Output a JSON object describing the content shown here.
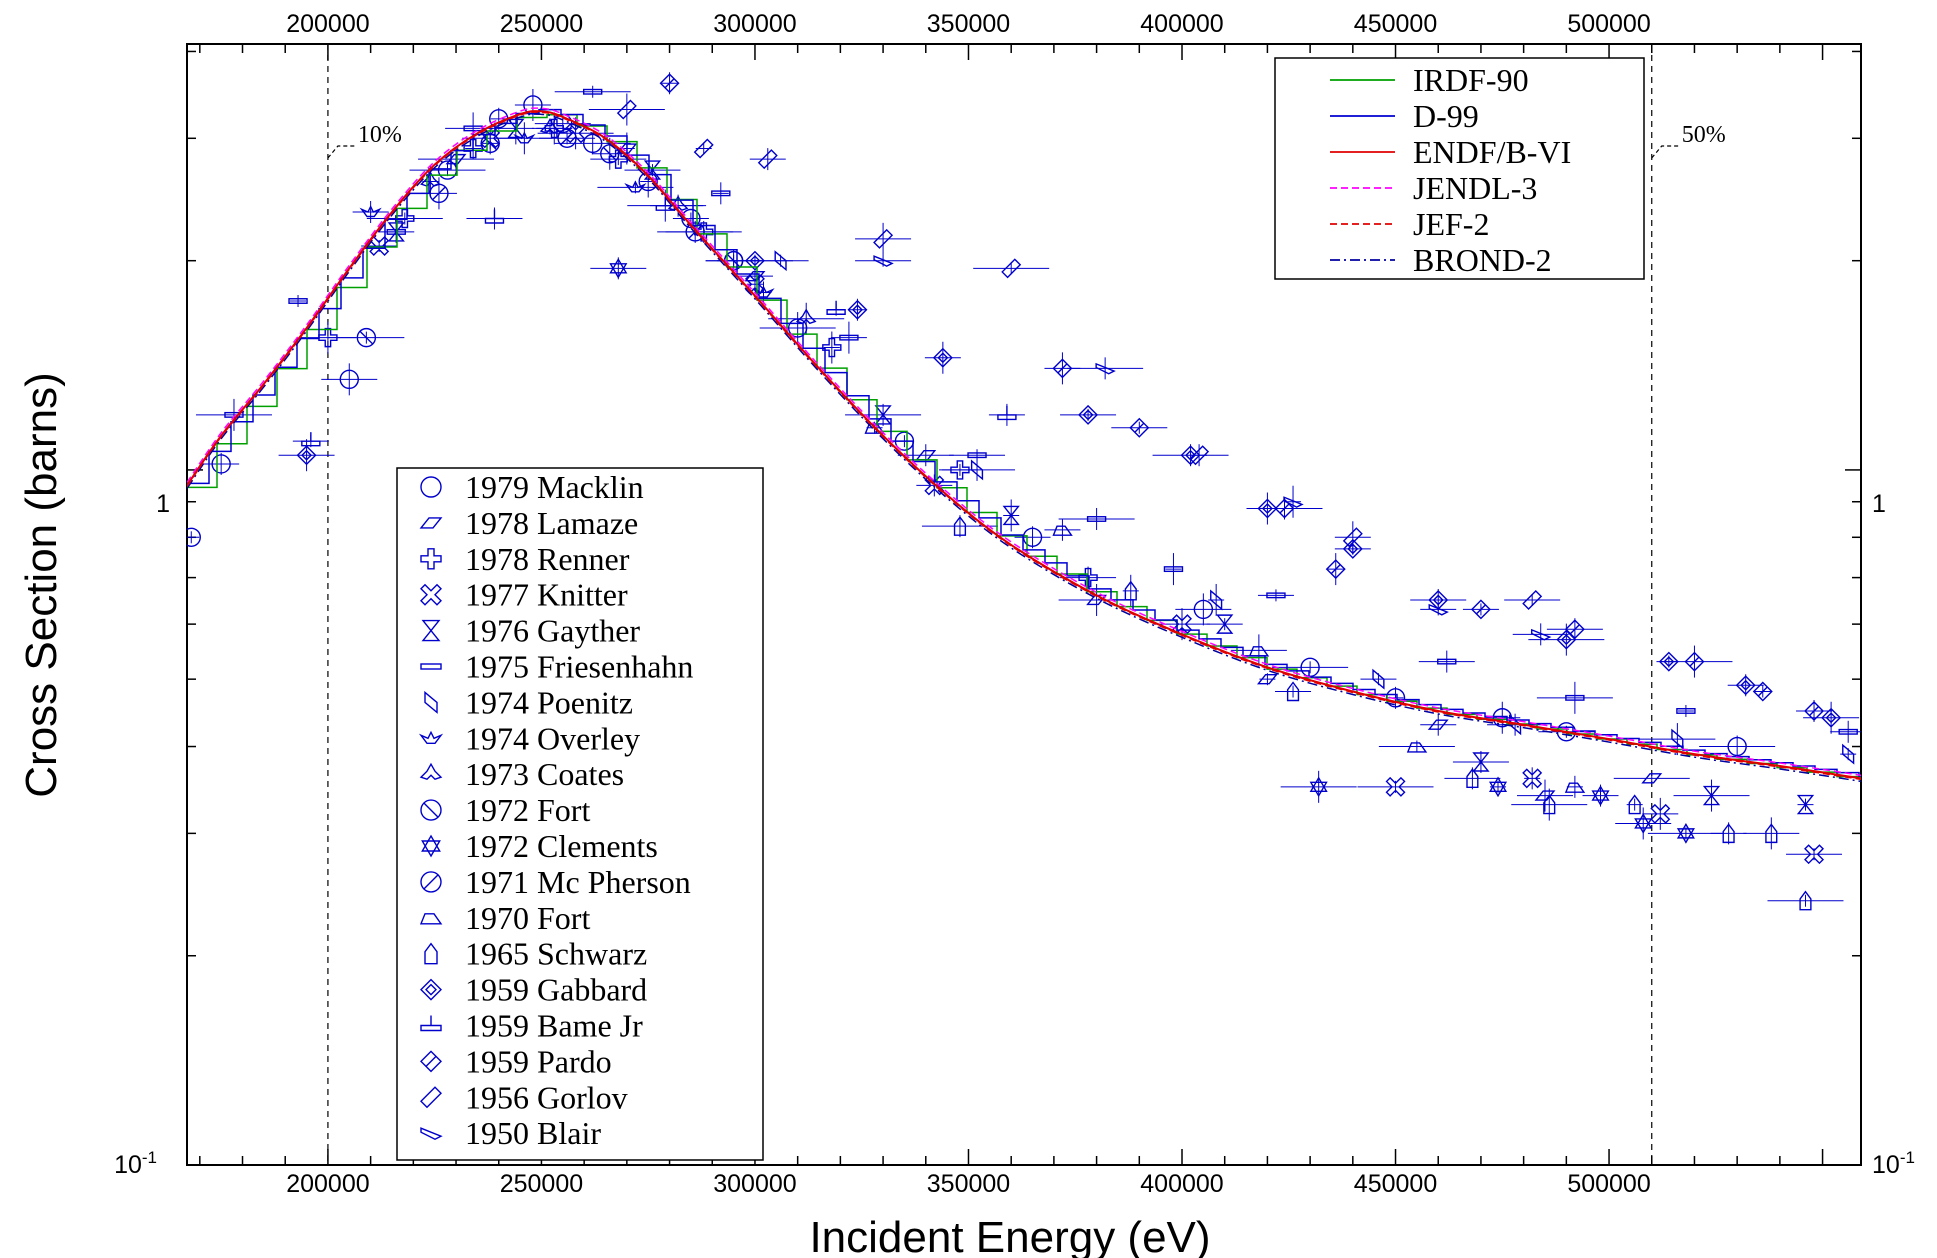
{
  "chart_data": {
    "type": "scatter",
    "xlabel": "Incident Energy (eV)",
    "ylabel": "Cross Section (barns)",
    "xlim": [
      167000,
      559000
    ],
    "ylim": [
      0.1,
      4.1
    ],
    "y_scale": "log",
    "x_ticks": [
      200000,
      250000,
      300000,
      350000,
      400000,
      450000,
      500000
    ],
    "x_tick_labels": [
      "200000",
      "250000",
      "300000",
      "350000",
      "400000",
      "450000",
      "500000"
    ],
    "y_tick_labels": {
      "one": "1",
      "tenth_base": "10",
      "tenth_exp": "-1"
    },
    "grid": false,
    "markers": [
      {
        "x": 200000,
        "label": "10%"
      },
      {
        "x": 510000,
        "label": "50%"
      }
    ],
    "evaluations_legend_position": "top-right",
    "experiments_legend_position": "lower-left",
    "evaluations": [
      {
        "name": "IRDF-90",
        "color": "#00a000",
        "dash": "solid"
      },
      {
        "name": "D-99",
        "color": "#0000d0",
        "dash": "solid"
      },
      {
        "name": "ENDF/B-VI",
        "color": "#e00000",
        "dash": "solid"
      },
      {
        "name": "JENDL-3",
        "color": "#ff00ff",
        "dash": "dashed"
      },
      {
        "name": "JEF-2",
        "color": "#e00000",
        "dash": "dashed"
      },
      {
        "name": "BROND-2",
        "color": "#0000a0",
        "dash": "dashdot"
      }
    ],
    "curve": {
      "x": [
        167000,
        175000,
        185000,
        195000,
        205000,
        215000,
        225000,
        235000,
        245000,
        250000,
        255000,
        265000,
        275000,
        285000,
        300000,
        315000,
        330000,
        345000,
        360000,
        380000,
        400000,
        420000,
        440000,
        460000,
        480000,
        500000,
        520000,
        540000,
        559000
      ],
      "y": [
        0.95,
        1.12,
        1.33,
        1.6,
        1.95,
        2.35,
        2.75,
        3.05,
        3.25,
        3.28,
        3.22,
        3.0,
        2.65,
        2.25,
        1.78,
        1.4,
        1.12,
        0.92,
        0.78,
        0.66,
        0.58,
        0.52,
        0.48,
        0.45,
        0.43,
        0.41,
        0.39,
        0.375,
        0.36
      ]
    },
    "experiments": [
      {
        "name": "1979 Macklin",
        "symbol": "circle",
        "x": [
          168000,
          175000,
          205000,
          228000,
          240000,
          248000,
          255000,
          262000,
          275000,
          285000,
          295000,
          310000,
          335000,
          365000,
          405000,
          430000,
          450000,
          475000,
          490000,
          530000
        ],
        "y": [
          0.8,
          1.02,
          1.35,
          2.7,
          3.2,
          3.35,
          3.15,
          2.95,
          2.6,
          2.3,
          2.0,
          1.6,
          1.1,
          0.8,
          0.63,
          0.52,
          0.47,
          0.44,
          0.42,
          0.4
        ]
      },
      {
        "name": "1978 Lamaze",
        "symbol": "parallelogram",
        "x": [
          230000,
          270000,
          300000,
          340000,
          380000,
          420000,
          460000,
          485000,
          510000
        ],
        "y": [
          2.8,
          2.9,
          1.9,
          1.05,
          0.65,
          0.5,
          0.43,
          0.34,
          0.36
        ]
      },
      {
        "name": "1978 Renner",
        "symbol": "plus",
        "x": [
          200000,
          218000,
          234000,
          253000,
          268000,
          288000,
          318000,
          348000,
          378000
        ],
        "y": [
          1.55,
          2.3,
          2.9,
          3.1,
          2.8,
          2.2,
          1.5,
          1.0,
          0.7
        ]
      },
      {
        "name": "1977 Knitter",
        "symbol": "x-cross",
        "x": [
          212000,
          238000,
          258000,
          300000,
          342000,
          400000,
          450000,
          482000,
          512000,
          548000
        ],
        "y": [
          2.1,
          3.0,
          3.05,
          1.85,
          0.95,
          0.6,
          0.35,
          0.36,
          0.32,
          0.28
        ]
      },
      {
        "name": "1976 Gayther",
        "symbol": "bowtie",
        "x": [
          216000,
          244000,
          276000,
          330000,
          360000,
          410000,
          470000,
          524000,
          546000
        ],
        "y": [
          2.2,
          3.1,
          2.7,
          1.2,
          0.86,
          0.6,
          0.38,
          0.34,
          0.33
        ]
      },
      {
        "name": "1975 Friesenhahn",
        "symbol": "bar",
        "x": [
          178000,
          193000,
          216000,
          234000,
          262000,
          292000,
          322000,
          352000,
          380000,
          398000,
          422000,
          462000,
          492000,
          518000,
          556000
        ],
        "y": [
          1.2,
          1.75,
          2.2,
          3.1,
          3.5,
          2.5,
          1.55,
          1.05,
          0.85,
          0.72,
          0.66,
          0.53,
          0.47,
          0.45,
          0.42
        ]
      },
      {
        "name": "1974 Poenitz",
        "symbol": "flag",
        "x": [
          306000,
          352000,
          408000,
          446000,
          478000,
          516000,
          556000
        ],
        "y": [
          2.0,
          1.0,
          0.65,
          0.5,
          0.43,
          0.41,
          0.39
        ]
      },
      {
        "name": "1974 Overley",
        "symbol": "boat",
        "x": [
          210000,
          246000,
          272000,
          302000
        ],
        "y": [
          2.35,
          3.0,
          2.55,
          1.8
        ]
      },
      {
        "name": "1973 Coates",
        "symbol": "club",
        "x": [
          224000,
          252000,
          282000,
          312000
        ],
        "y": [
          2.6,
          3.1,
          2.4,
          1.65
        ]
      },
      {
        "name": "1972 Fort",
        "symbol": "circle-slash",
        "x": [
          209000,
          238000,
          266000,
          295000
        ],
        "y": [
          1.55,
          2.95,
          2.85,
          2.0
        ]
      },
      {
        "name": "1972 Clements",
        "symbol": "star6",
        "x": [
          268000,
          432000,
          474000,
          498000,
          508000,
          518000
        ],
        "y": [
          1.95,
          0.35,
          0.35,
          0.34,
          0.31,
          0.3
        ]
      },
      {
        "name": "1971 Mc Pherson",
        "symbol": "circle-slash-fwd",
        "x": [
          226000,
          256000,
          286000
        ],
        "y": [
          2.5,
          3.0,
          2.2
        ]
      },
      {
        "name": "1970 Fort",
        "symbol": "pentagon-flag",
        "x": [
          328000,
          372000,
          418000,
          455000,
          492000
        ],
        "y": [
          1.15,
          0.82,
          0.55,
          0.4,
          0.35
        ]
      },
      {
        "name": "1965 Schwarz",
        "symbol": "house",
        "x": [
          348000,
          388000,
          426000,
          468000,
          486000,
          506000,
          528000,
          538000,
          546000
        ],
        "y": [
          0.83,
          0.67,
          0.48,
          0.36,
          0.33,
          0.33,
          0.3,
          0.3,
          0.24
        ]
      },
      {
        "name": "1959 Gabbard",
        "symbol": "diamond",
        "x": [
          195000,
          300000,
          324000,
          344000,
          378000,
          402000,
          420000,
          440000,
          460000,
          490000,
          514000,
          532000,
          552000
        ],
        "y": [
          1.05,
          2.0,
          1.7,
          1.45,
          1.2,
          1.05,
          0.88,
          0.77,
          0.65,
          0.57,
          0.53,
          0.49,
          0.44
        ]
      },
      {
        "name": "1959 Bame Jr",
        "symbol": "tee",
        "x": [
          196000,
          239000,
          279000,
          319000,
          359000
        ],
        "y": [
          1.1,
          2.3,
          2.4,
          1.7,
          1.2
        ]
      },
      {
        "name": "1959 Pardo",
        "symbol": "diamond-hatched",
        "x": [
          280000,
          372000,
          390000,
          424000,
          436000,
          470000,
          492000,
          520000,
          536000,
          548000
        ],
        "y": [
          3.6,
          1.4,
          1.15,
          0.88,
          0.72,
          0.63,
          0.59,
          0.53,
          0.48,
          0.45
        ]
      },
      {
        "name": "1956 Gorlov",
        "symbol": "slash-diamond",
        "x": [
          270000,
          288000,
          303000,
          330000,
          360000,
          404000,
          440000,
          482000
        ],
        "y": [
          3.3,
          2.9,
          2.8,
          2.15,
          1.95,
          1.05,
          0.8,
          0.65
        ]
      },
      {
        "name": "1950 Blair",
        "symbol": "ribbon",
        "x": [
          330000,
          382000,
          426000,
          460000,
          484000
        ],
        "y": [
          2.0,
          1.4,
          0.9,
          0.63,
          0.58
        ]
      }
    ]
  }
}
